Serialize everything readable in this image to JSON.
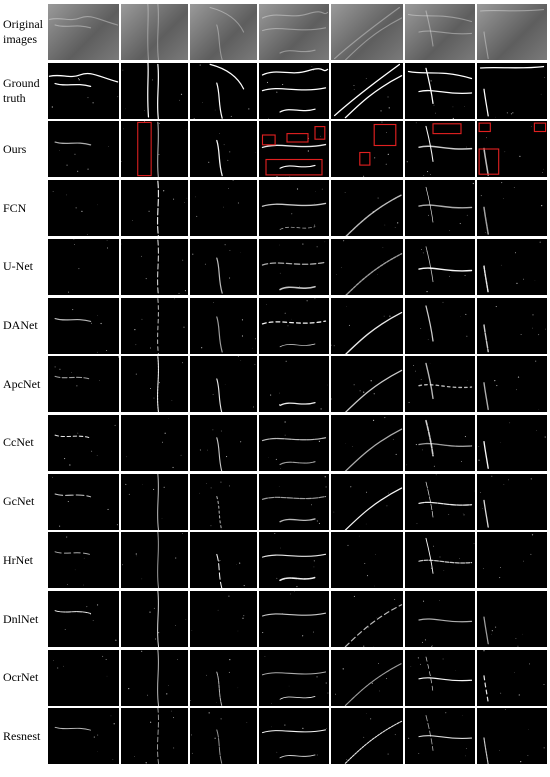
{
  "figure": {
    "columns": 7,
    "row_labels": [
      "Original images",
      "Ground truth",
      "Ours",
      "FCN",
      "U-Net",
      "DANet",
      "ApcNet",
      "CcNet",
      "GcNet",
      "HrNet",
      "DnlNet",
      "OcrNet",
      "Resnest"
    ],
    "colors": {
      "background": "#ffffff",
      "tile": "#000000",
      "crack": "#ffffff",
      "highlight_box": "#e02020"
    }
  }
}
